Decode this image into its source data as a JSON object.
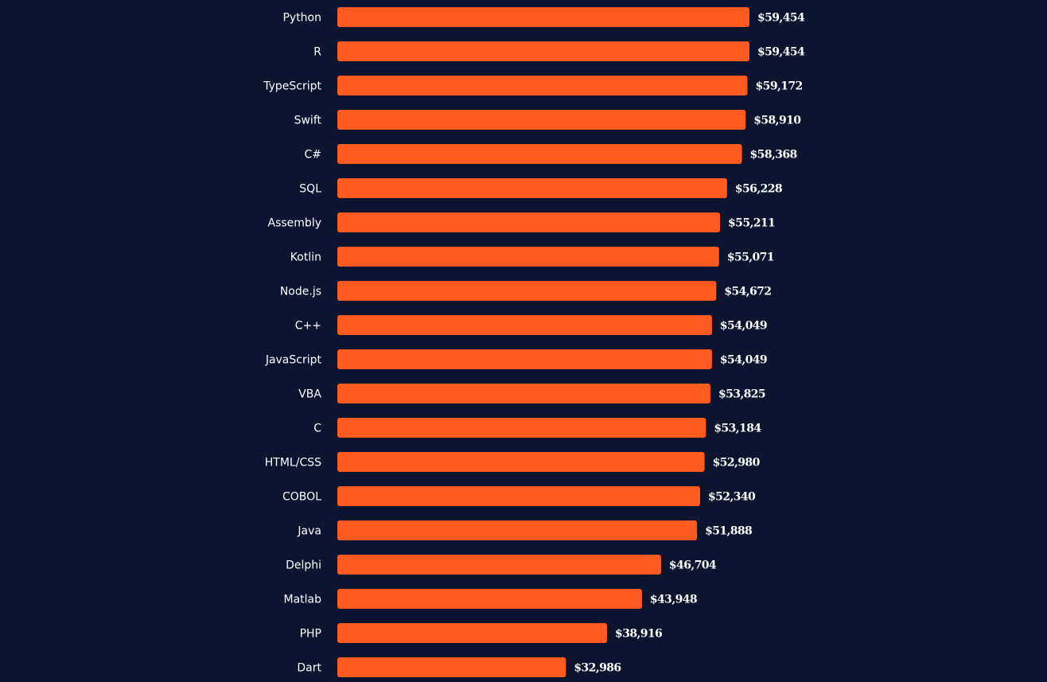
{
  "colors": {
    "background": "#0c1430",
    "bar": "#ff5a1f",
    "text": "#ffffff"
  },
  "chart_data": {
    "type": "bar",
    "orientation": "horizontal",
    "categories": [
      "Python",
      "R",
      "TypeScript",
      "Swift",
      "C#",
      "SQL",
      "Assembly",
      "Kotlin",
      "Node.js",
      "C++",
      "JavaScript",
      "VBA",
      "C",
      "HTML/CSS",
      "COBOL",
      "Java",
      "Delphi",
      "Matlab",
      "PHP",
      "Dart"
    ],
    "values": [
      59454,
      59454,
      59172,
      58910,
      58368,
      56228,
      55211,
      55071,
      54672,
      54049,
      54049,
      53825,
      53184,
      52980,
      52340,
      51888,
      46704,
      43948,
      38916,
      32986
    ],
    "value_labels": [
      "$59,454",
      "$59,454",
      "$59,172",
      "$58,910",
      "$58,368",
      "$56,228",
      "$55,211",
      "$55,071",
      "$54,672",
      "$54,049",
      "$54,049",
      "$53,825",
      "$53,184",
      "$52,980",
      "$52,340",
      "$51,888",
      "$46,704",
      "$43,948",
      "$38,916",
      "$32,986"
    ],
    "xlim": [
      0,
      59454
    ],
    "grid": false,
    "legend": "none"
  }
}
